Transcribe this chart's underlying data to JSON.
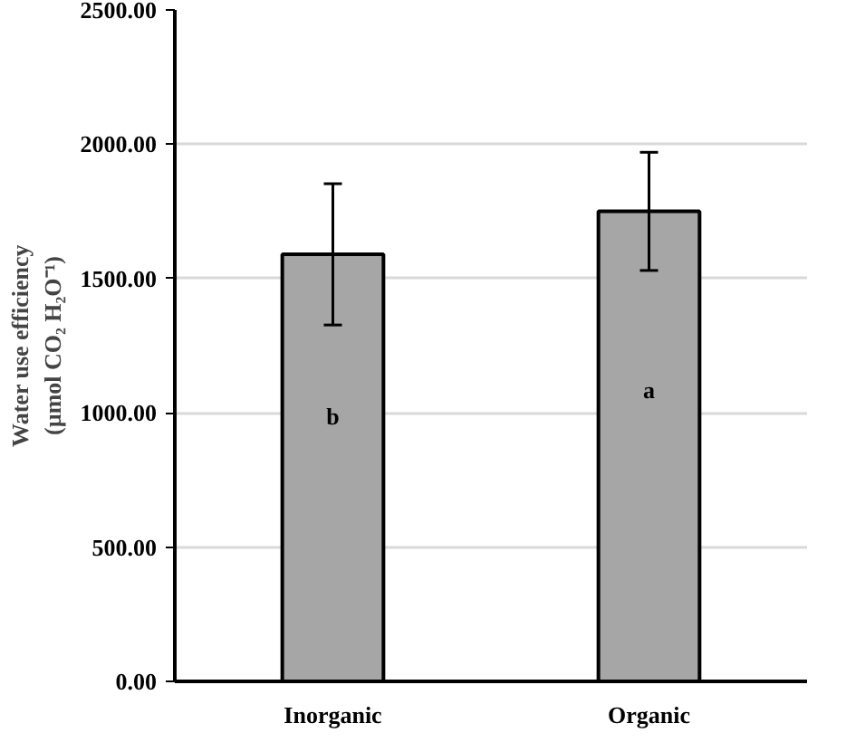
{
  "chart_data": {
    "type": "bar",
    "ylabel": "Water use efficiency\n(µmol CO₂ H₂O⁻¹)",
    "categories": [
      "Inorganic",
      "Organic"
    ],
    "values": [
      1590,
      1750
    ],
    "errors": [
      263,
      220
    ],
    "color": "#a6a6a6",
    "ylim": [
      0,
      2500
    ],
    "yticks": [
      {
        "value": 0,
        "label": "0.00"
      },
      {
        "value": 500,
        "label": "500.00"
      },
      {
        "value": 1000,
        "label": "1000.00"
      },
      {
        "value": 1500,
        "label": "1500.00"
      },
      {
        "value": 2000,
        "label": "2000.00"
      },
      {
        "value": 2500,
        "label": "2500.00"
      }
    ],
    "grid": "y",
    "annotations": [
      "b",
      "a"
    ]
  }
}
